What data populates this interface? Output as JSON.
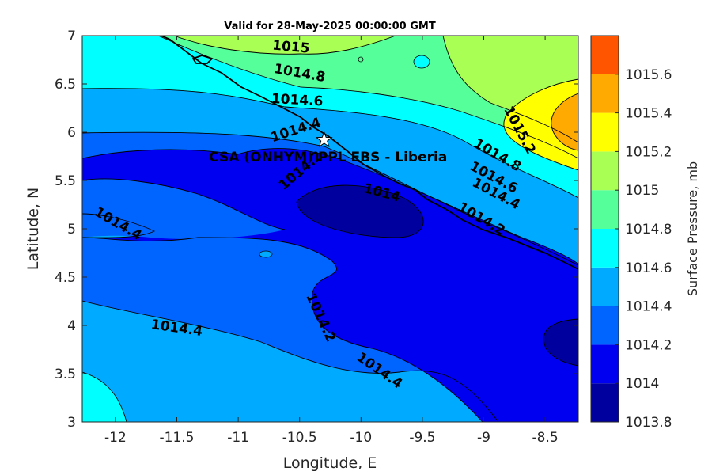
{
  "title": "Valid for 28-May-2025 00:00:00 GMT",
  "x_axis": {
    "label": "Longitude, E",
    "ticks": [
      {
        "value": -12,
        "label": "-12"
      },
      {
        "value": -11.5,
        "label": "-11.5"
      },
      {
        "value": -11,
        "label": "-11"
      },
      {
        "value": -10.5,
        "label": "-10.5"
      },
      {
        "value": -10,
        "label": "-10"
      },
      {
        "value": -9.5,
        "label": "-9.5"
      },
      {
        "value": -9,
        "label": "-9"
      },
      {
        "value": -8.5,
        "label": "-8.5"
      }
    ],
    "range": [
      -12.27,
      -8.23
    ]
  },
  "y_axis": {
    "label": "Latitude, N",
    "ticks": [
      {
        "value": 3,
        "label": "3"
      },
      {
        "value": 3.5,
        "label": "3.5"
      },
      {
        "value": 4,
        "label": "4"
      },
      {
        "value": 4.5,
        "label": "4.5"
      },
      {
        "value": 5,
        "label": "5"
      },
      {
        "value": 5.5,
        "label": "5.5"
      },
      {
        "value": 6,
        "label": "6"
      },
      {
        "value": 6.5,
        "label": "6.5"
      },
      {
        "value": 7,
        "label": "7"
      }
    ],
    "range": [
      3,
      7
    ]
  },
  "colorbar": {
    "label": "Surface Pressure, mb",
    "levels": [
      {
        "label": "1013.8",
        "color": "#00009f"
      },
      {
        "label": "1014",
        "color": "#0000f0"
      },
      {
        "label": "1014.2",
        "color": "#0064ff"
      },
      {
        "label": "1014.4",
        "color": "#00aaff"
      },
      {
        "label": "1014.6",
        "color": "#00ffff"
      },
      {
        "label": "1014.8",
        "color": "#55ff99"
      },
      {
        "label": "1015",
        "color": "#aaff55"
      },
      {
        "label": "1015.2",
        "color": "#ffff00"
      },
      {
        "label": "1015.4",
        "color": "#ffaa00"
      },
      {
        "label": "1015.6",
        "color": "#ff5500"
      }
    ]
  },
  "station": {
    "label": "CSA (ONHYM) PPL EBS  - Liberia",
    "lon": -10.3,
    "lat": 5.92
  },
  "contour_labels": [
    {
      "text": "1015",
      "lon": -10.57,
      "lat": 6.88,
      "angle": 5
    },
    {
      "text": "1014.8",
      "lon": -10.5,
      "lat": 6.61,
      "angle": 10
    },
    {
      "text": "1014.6",
      "lon": -10.52,
      "lat": 6.33,
      "angle": 3
    },
    {
      "text": "1014.4",
      "lon": -10.53,
      "lat": 6.02,
      "angle": -18
    },
    {
      "text": "1014.2",
      "lon": -10.49,
      "lat": 5.6,
      "angle": -40
    },
    {
      "text": "1014",
      "lon": -9.83,
      "lat": 5.37,
      "angle": 15
    },
    {
      "text": "1014.4",
      "lon": -11.98,
      "lat": 5.05,
      "angle": 30
    },
    {
      "text": "1015.2",
      "lon": -8.71,
      "lat": 6.02,
      "angle": 62
    },
    {
      "text": "1014.8",
      "lon": -8.89,
      "lat": 5.76,
      "angle": 30
    },
    {
      "text": "1014.6",
      "lon": -8.92,
      "lat": 5.53,
      "angle": 28
    },
    {
      "text": "1014.4",
      "lon": -8.9,
      "lat": 5.36,
      "angle": 28
    },
    {
      "text": "1014.2",
      "lon": -9.02,
      "lat": 5.1,
      "angle": 30
    },
    {
      "text": "1014.2",
      "lon": -10.33,
      "lat": 4.08,
      "angle": 65
    },
    {
      "text": "1014.4",
      "lon": -11.5,
      "lat": 3.97,
      "angle": 8
    },
    {
      "text": "1014.4",
      "lon": -9.85,
      "lat": 3.53,
      "angle": 35
    }
  ]
}
